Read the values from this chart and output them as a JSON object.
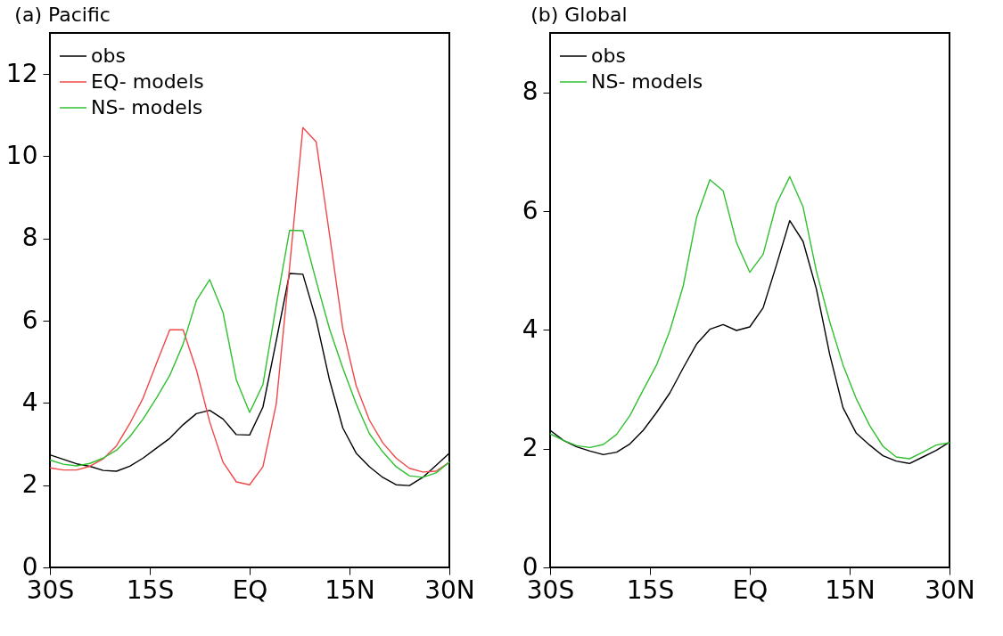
{
  "chart_data": [
    {
      "type": "line",
      "title": "(a) Pacific",
      "x": [
        -30,
        -28,
        -26,
        -24,
        -22,
        -20,
        -18,
        -16,
        -14,
        -12,
        -10,
        -8,
        -6,
        -4,
        -2,
        0,
        2,
        4,
        6,
        8,
        10,
        12,
        14,
        16,
        18,
        20,
        22,
        24,
        26,
        28,
        30
      ],
      "series": [
        {
          "name": "obs",
          "color": "#000000",
          "values": [
            2.74,
            2.63,
            2.52,
            2.46,
            2.36,
            2.34,
            2.46,
            2.66,
            2.9,
            3.14,
            3.47,
            3.74,
            3.82,
            3.61,
            3.23,
            3.22,
            3.9,
            5.51,
            7.15,
            7.13,
            6.02,
            4.56,
            3.39,
            2.78,
            2.45,
            2.19,
            2.01,
            1.99,
            2.19,
            2.48,
            2.78
          ]
        },
        {
          "name": "EQ- models",
          "color": "#f04848",
          "values": [
            2.42,
            2.37,
            2.37,
            2.46,
            2.64,
            2.96,
            3.5,
            4.12,
            4.96,
            5.78,
            5.78,
            4.81,
            3.54,
            2.56,
            2.08,
            2.01,
            2.45,
            3.98,
            7.3,
            10.7,
            10.35,
            8.1,
            5.8,
            4.42,
            3.58,
            3.03,
            2.66,
            2.41,
            2.32,
            2.34,
            2.56
          ]
        },
        {
          "name": "NS- models",
          "color": "#30c030",
          "values": [
            2.61,
            2.51,
            2.47,
            2.53,
            2.66,
            2.85,
            3.18,
            3.61,
            4.12,
            4.67,
            5.43,
            6.49,
            7.0,
            6.2,
            4.56,
            3.77,
            4.45,
            6.38,
            8.2,
            8.19,
            6.97,
            5.8,
            4.85,
            3.98,
            3.25,
            2.81,
            2.45,
            2.23,
            2.19,
            2.3,
            2.56
          ]
        }
      ],
      "xlim": [
        -30,
        30
      ],
      "xticks": [
        {
          "value": -30,
          "label": "30S"
        },
        {
          "value": -15,
          "label": "15S"
        },
        {
          "value": 0,
          "label": "EQ"
        },
        {
          "value": 15,
          "label": "15N"
        },
        {
          "value": 30,
          "label": "30N"
        }
      ],
      "ylim": [
        0,
        13
      ],
      "yticks": [
        0,
        2,
        4,
        6,
        8,
        10,
        12
      ],
      "grid": false,
      "legend": "top left",
      "line_style": "solid"
    },
    {
      "type": "line",
      "title": "(b) Global",
      "x": [
        -30,
        -28,
        -26,
        -24,
        -22,
        -20,
        -18,
        -16,
        -14,
        -12,
        -10,
        -8,
        -6,
        -4,
        -2,
        0,
        2,
        4,
        6,
        8,
        10,
        12,
        14,
        16,
        18,
        20,
        22,
        24,
        26,
        28,
        30
      ],
      "series": [
        {
          "name": "obs",
          "color": "#000000",
          "values": [
            2.31,
            2.14,
            2.03,
            1.96,
            1.9,
            1.94,
            2.08,
            2.31,
            2.61,
            2.94,
            3.36,
            3.76,
            4.01,
            4.09,
            3.99,
            4.05,
            4.37,
            5.09,
            5.84,
            5.49,
            4.69,
            3.59,
            2.69,
            2.26,
            2.06,
            1.88,
            1.79,
            1.75,
            1.86,
            1.97,
            2.11
          ]
        },
        {
          "name": "NS- models",
          "color": "#30c030",
          "values": [
            2.25,
            2.14,
            2.05,
            2.02,
            2.07,
            2.24,
            2.56,
            2.99,
            3.41,
            3.99,
            4.74,
            5.89,
            6.53,
            6.34,
            5.47,
            4.97,
            5.27,
            6.12,
            6.58,
            6.07,
            4.99,
            4.14,
            3.41,
            2.84,
            2.39,
            2.04,
            1.86,
            1.83,
            1.94,
            2.06,
            2.1
          ]
        }
      ],
      "xlim": [
        -30,
        30
      ],
      "xticks": [
        {
          "value": -30,
          "label": "30S"
        },
        {
          "value": -15,
          "label": "15S"
        },
        {
          "value": 0,
          "label": "EQ"
        },
        {
          "value": 15,
          "label": "15N"
        },
        {
          "value": 30,
          "label": "30N"
        }
      ],
      "ylim": [
        0,
        9
      ],
      "yticks": [
        0,
        2,
        4,
        6,
        8
      ],
      "grid": false,
      "legend": "top left",
      "line_style": "solid"
    }
  ]
}
